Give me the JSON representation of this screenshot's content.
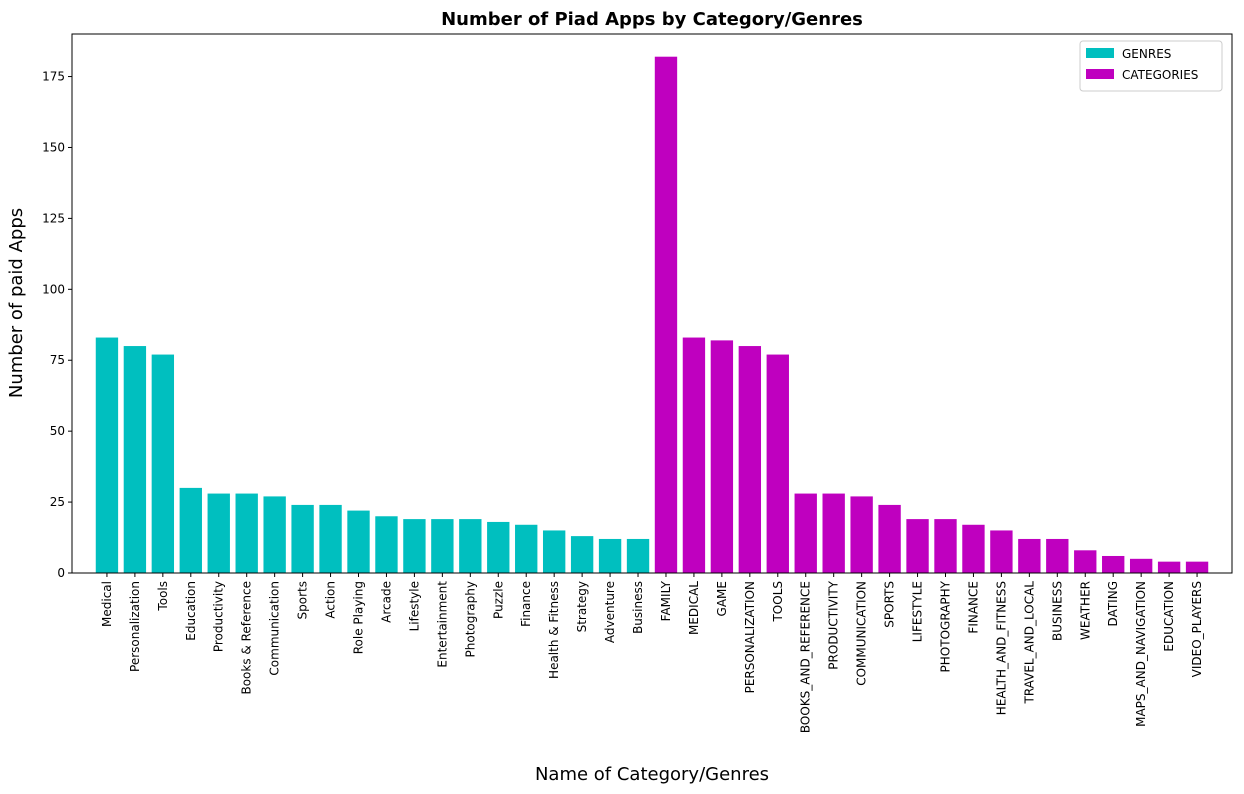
{
  "chart_data": {
    "type": "bar",
    "title": "Number of Piad Apps by Category/Genres",
    "xlabel": "Name of Category/Genres",
    "ylabel": "Number of paid Apps",
    "ylim": [
      0,
      190
    ],
    "yticks": [
      0,
      25,
      50,
      75,
      100,
      125,
      150,
      175
    ],
    "legend_position": "top-right",
    "grid": false,
    "series": [
      {
        "name": "GENRES",
        "color": "#00bfbf",
        "categories": [
          "Medical",
          "Personalization",
          "Tools",
          "Education",
          "Productivity",
          "Books & Reference",
          "Communication",
          "Sports",
          "Action",
          "Role Playing",
          "Arcade",
          "Lifestyle",
          "Entertainment",
          "Photography",
          "Puzzle",
          "Finance",
          "Health & Fitness",
          "Strategy",
          "Adventure",
          "Business"
        ],
        "values": [
          83,
          80,
          77,
          30,
          28,
          28,
          27,
          24,
          24,
          22,
          20,
          19,
          19,
          19,
          18,
          17,
          15,
          13,
          12,
          12
        ]
      },
      {
        "name": "CATEGORIES",
        "color": "#bf00bf",
        "categories": [
          "FAMILY",
          "MEDICAL",
          "GAME",
          "PERSONALIZATION",
          "TOOLS",
          "BOOKS_AND_REFERENCE",
          "PRODUCTIVITY",
          "COMMUNICATION",
          "SPORTS",
          "LIFESTYLE",
          "PHOTOGRAPHY",
          "FINANCE",
          "HEALTH_AND_FITNESS",
          "TRAVEL_AND_LOCAL",
          "BUSINESS",
          "WEATHER",
          "DATING",
          "MAPS_AND_NAVIGATION",
          "EDUCATION",
          "VIDEO_PLAYERS"
        ],
        "values": [
          182,
          83,
          82,
          80,
          77,
          28,
          28,
          27,
          24,
          19,
          19,
          17,
          15,
          12,
          12,
          8,
          6,
          5,
          4,
          4
        ]
      }
    ]
  }
}
